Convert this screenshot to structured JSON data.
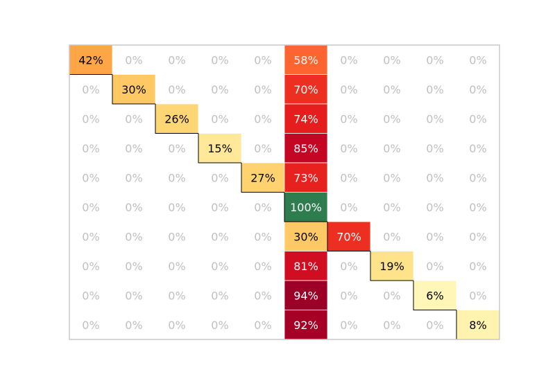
{
  "chart_data": {
    "type": "heatmap",
    "title": "",
    "xlabel": "",
    "ylabel": "",
    "rows": 10,
    "cols": 10,
    "grid": false,
    "value_unit": "%",
    "values": [
      [
        42,
        0,
        0,
        0,
        0,
        58,
        0,
        0,
        0,
        0
      ],
      [
        0,
        30,
        0,
        0,
        0,
        70,
        0,
        0,
        0,
        0
      ],
      [
        0,
        0,
        26,
        0,
        0,
        74,
        0,
        0,
        0,
        0
      ],
      [
        0,
        0,
        0,
        15,
        0,
        85,
        0,
        0,
        0,
        0
      ],
      [
        0,
        0,
        0,
        0,
        27,
        73,
        0,
        0,
        0,
        0
      ],
      [
        0,
        0,
        0,
        0,
        0,
        100,
        0,
        0,
        0,
        0
      ],
      [
        0,
        0,
        0,
        0,
        0,
        30,
        70,
        0,
        0,
        0
      ],
      [
        0,
        0,
        0,
        0,
        0,
        81,
        0,
        19,
        0,
        0
      ],
      [
        0,
        0,
        0,
        0,
        0,
        94,
        0,
        0,
        6,
        0
      ],
      [
        0,
        0,
        0,
        0,
        0,
        92,
        0,
        0,
        0,
        8
      ]
    ],
    "labels": [
      [
        "42%",
        "0%",
        "0%",
        "0%",
        "0%",
        "58%",
        "0%",
        "0%",
        "0%",
        "0%"
      ],
      [
        "0%",
        "30%",
        "0%",
        "0%",
        "0%",
        "70%",
        "0%",
        "0%",
        "0%",
        "0%"
      ],
      [
        "0%",
        "0%",
        "26%",
        "0%",
        "0%",
        "74%",
        "0%",
        "0%",
        "0%",
        "0%"
      ],
      [
        "0%",
        "0%",
        "0%",
        "15%",
        "0%",
        "85%",
        "0%",
        "0%",
        "0%",
        "0%"
      ],
      [
        "0%",
        "0%",
        "0%",
        "0%",
        "27%",
        "73%",
        "0%",
        "0%",
        "0%",
        "0%"
      ],
      [
        "0%",
        "0%",
        "0%",
        "0%",
        "0%",
        "100%",
        "0%",
        "0%",
        "0%",
        "0%"
      ],
      [
        "0%",
        "0%",
        "0%",
        "0%",
        "0%",
        "30%",
        "70%",
        "0%",
        "0%",
        "0%"
      ],
      [
        "0%",
        "0%",
        "0%",
        "0%",
        "0%",
        "81%",
        "0%",
        "19%",
        "0%",
        "0%"
      ],
      [
        "0%",
        "0%",
        "0%",
        "0%",
        "0%",
        "94%",
        "0%",
        "0%",
        "6%",
        "0%"
      ],
      [
        "0%",
        "0%",
        "0%",
        "0%",
        "0%",
        "92%",
        "0%",
        "0%",
        "0%",
        "8%"
      ]
    ],
    "special_cells": [
      {
        "row": 5,
        "col": 5,
        "color": "#2e7d4f"
      }
    ],
    "colors": {
      "zero_text": "#c0c0c0",
      "dark_text": "#000000",
      "light_text": "#ffffff",
      "frame": "#c8c8c8",
      "outline": "#000000"
    }
  }
}
